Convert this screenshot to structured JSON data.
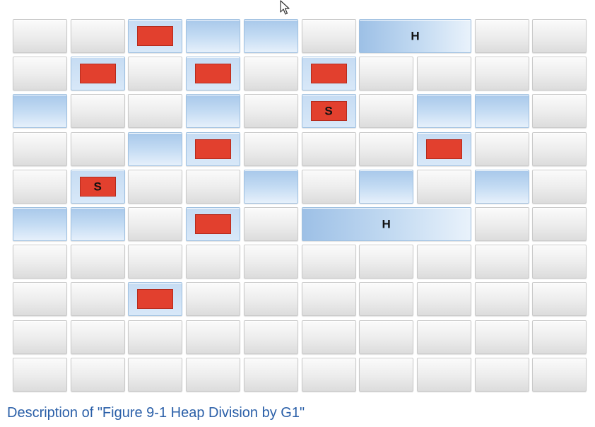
{
  "colors": {
    "free_region": "#e6e6e6",
    "region_blue": "#b9d3ef",
    "object_red": "#e2402e",
    "caption": "#2a5fa8"
  },
  "grid": {
    "columns": 10,
    "rows": 10
  },
  "regions": [
    {
      "row": 0,
      "col": 2,
      "span": 1,
      "kind": "object"
    },
    {
      "row": 0,
      "col": 3,
      "span": 1,
      "kind": "blue"
    },
    {
      "row": 0,
      "col": 4,
      "span": 1,
      "kind": "blue"
    },
    {
      "row": 0,
      "col": 6,
      "span": 2,
      "kind": "humongous",
      "label": "H"
    },
    {
      "row": 1,
      "col": 1,
      "span": 1,
      "kind": "object"
    },
    {
      "row": 1,
      "col": 3,
      "span": 1,
      "kind": "object"
    },
    {
      "row": 1,
      "col": 5,
      "span": 1,
      "kind": "object"
    },
    {
      "row": 2,
      "col": 0,
      "span": 1,
      "kind": "blue"
    },
    {
      "row": 2,
      "col": 3,
      "span": 1,
      "kind": "blue"
    },
    {
      "row": 2,
      "col": 5,
      "span": 1,
      "kind": "object",
      "label": "S"
    },
    {
      "row": 2,
      "col": 7,
      "span": 1,
      "kind": "blue"
    },
    {
      "row": 2,
      "col": 8,
      "span": 1,
      "kind": "blue"
    },
    {
      "row": 3,
      "col": 2,
      "span": 1,
      "kind": "blue"
    },
    {
      "row": 3,
      "col": 3,
      "span": 1,
      "kind": "object"
    },
    {
      "row": 3,
      "col": 7,
      "span": 1,
      "kind": "object"
    },
    {
      "row": 4,
      "col": 1,
      "span": 1,
      "kind": "object",
      "label": "S"
    },
    {
      "row": 4,
      "col": 4,
      "span": 1,
      "kind": "blue"
    },
    {
      "row": 4,
      "col": 6,
      "span": 1,
      "kind": "blue"
    },
    {
      "row": 4,
      "col": 8,
      "span": 1,
      "kind": "blue"
    },
    {
      "row": 5,
      "col": 0,
      "span": 1,
      "kind": "blue"
    },
    {
      "row": 5,
      "col": 1,
      "span": 1,
      "kind": "blue"
    },
    {
      "row": 5,
      "col": 3,
      "span": 1,
      "kind": "object"
    },
    {
      "row": 5,
      "col": 5,
      "span": 3,
      "kind": "humongous",
      "label": "H"
    },
    {
      "row": 7,
      "col": 2,
      "span": 1,
      "kind": "object"
    }
  ],
  "caption": "Description of \"Figure 9-1 Heap Division by G1\""
}
